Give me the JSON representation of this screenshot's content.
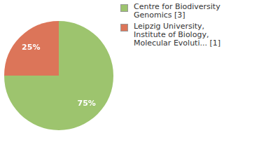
{
  "chart_data": {
    "type": "pie",
    "categories": [
      "Centre for Biodiversity Genomics [3]",
      "Leipzig University, Institute of Biology, Molecular Evoluti... [1]"
    ],
    "values": [
      75,
      25
    ],
    "value_labels": [
      "75%",
      "25%"
    ],
    "colors": [
      "#9dc46e",
      "#dc7559"
    ],
    "data_labels": true,
    "legend": "right"
  }
}
